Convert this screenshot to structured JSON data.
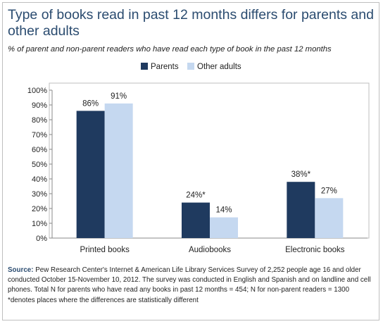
{
  "title": "Type of books read in past 12 months differs for parents and other adults",
  "subtitle": "% of parent and non-parent readers who have read each type of book in the past 12 months",
  "colors": {
    "parents": "#1f3a5f",
    "other_adults": "#c5d8f0",
    "title": "#2b4c70"
  },
  "chart_data": {
    "type": "bar",
    "categories": [
      "Printed books",
      "Audiobooks",
      "Electronic books"
    ],
    "series": [
      {
        "name": "Parents",
        "values": [
          86,
          24,
          38
        ],
        "labels": [
          "86%",
          "24%*",
          "38%*"
        ]
      },
      {
        "name": "Other adults",
        "values": [
          91,
          14,
          27
        ],
        "labels": [
          "91%",
          "14%",
          "27%"
        ]
      }
    ],
    "y_ticks": [
      "0%",
      "10%",
      "20%",
      "30%",
      "40%",
      "50%",
      "60%",
      "70%",
      "80%",
      "90%",
      "100%"
    ],
    "ylim": [
      0,
      100
    ],
    "legend_position": "top-center",
    "grid": false
  },
  "source": {
    "label": "Source:",
    "text": "Pew Research Center's Internet & American Life Library Services Survey of 2,252 people age 16 and older conducted October 15-November 10, 2012. The survey was conducted in English and Spanish and on landline and cell phones. Total N for parents who have read any books in past 12 months = 454; N for non-parent readers = 1300",
    "footnote": "*denotes places where the differences are statistically different"
  }
}
